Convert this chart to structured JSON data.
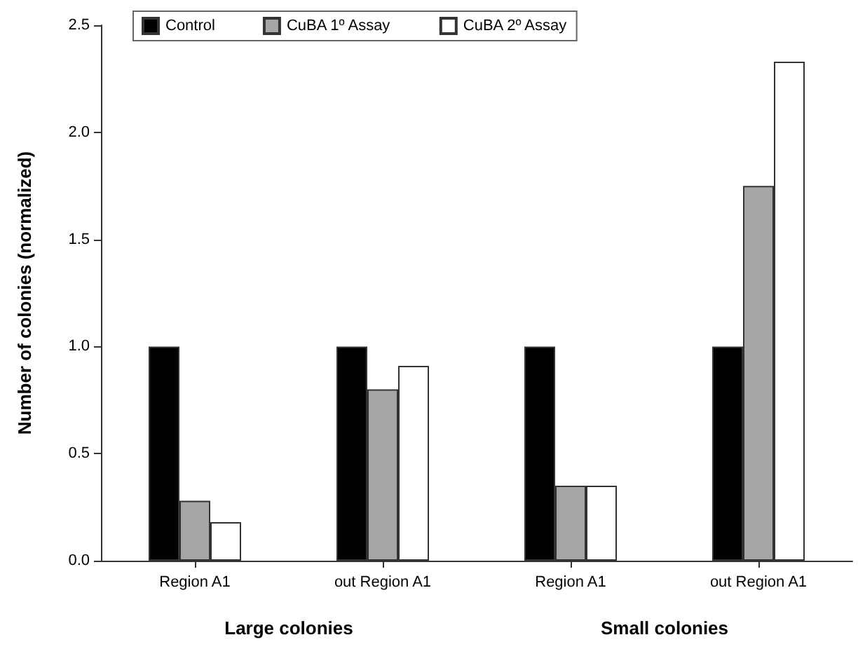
{
  "chart_data": {
    "type": "bar",
    "ylabel": "Number of colonies (normalized)",
    "categories": [
      "Region A1",
      "out Region A1",
      "Region A1",
      "out Region A1"
    ],
    "series": [
      {
        "name": "Control",
        "color": "#000000",
        "values": [
          1.0,
          1.0,
          1.0,
          1.0
        ]
      },
      {
        "name": "CuBA 1º Assay",
        "color": "#a6a6a6",
        "values": [
          0.28,
          0.8,
          0.35,
          1.75
        ]
      },
      {
        "name": "CuBA 2º Assay",
        "color": "#ffffff",
        "values": [
          0.18,
          0.91,
          0.35,
          2.33
        ]
      }
    ],
    "ylim": [
      0,
      2.5
    ],
    "yticks": [
      {
        "value": 0,
        "label": "0.0"
      },
      0.5,
      {
        "value": 1,
        "label": "1.0"
      },
      1.5,
      {
        "value": 2,
        "label": "2.0"
      },
      2.5
    ],
    "grid": false,
    "legend": "top",
    "annotations": [
      "Large colonies",
      "Small colonies"
    ]
  }
}
